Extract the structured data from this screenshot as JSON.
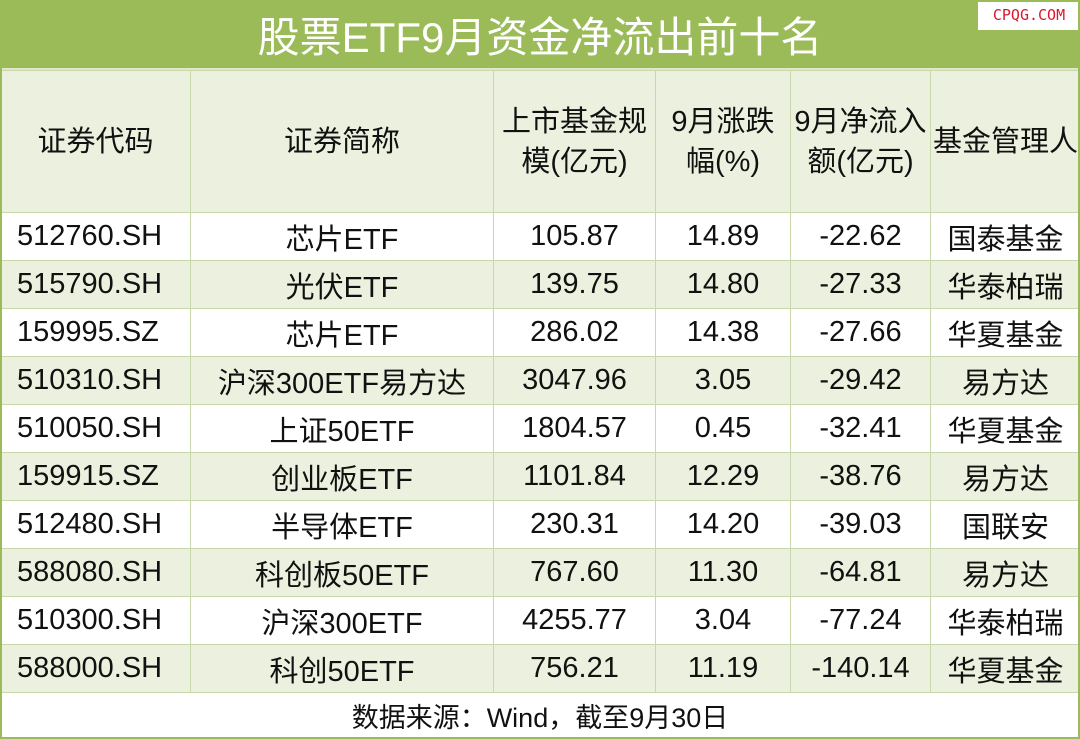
{
  "title": "股票ETF9月资金净流出前十名",
  "watermark": "CPQG.COM",
  "chart_data": {
    "type": "table",
    "title": "股票ETF9月资金净流出前十名",
    "columns": [
      "证券代码",
      "证券简称",
      "上市基金规模(亿元)",
      "9月涨跌幅(%)",
      "9月净流入额(亿元)",
      "基金管理人"
    ],
    "rows": [
      [
        "512760.SH",
        "芯片ETF",
        "105.87",
        "14.89",
        "-22.62",
        "国泰基金"
      ],
      [
        "515790.SH",
        "光伏ETF",
        "139.75",
        "14.80",
        "-27.33",
        "华泰柏瑞"
      ],
      [
        "159995.SZ",
        "芯片ETF",
        "286.02",
        "14.38",
        "-27.66",
        "华夏基金"
      ],
      [
        "510310.SH",
        "沪深300ETF易方达",
        "3047.96",
        "3.05",
        "-29.42",
        "易方达"
      ],
      [
        "510050.SH",
        "上证50ETF",
        "1804.57",
        "0.45",
        "-32.41",
        "华夏基金"
      ],
      [
        "159915.SZ",
        "创业板ETF",
        "1101.84",
        "12.29",
        "-38.76",
        "易方达"
      ],
      [
        "512480.SH",
        "半导体ETF",
        "230.31",
        "14.20",
        "-39.03",
        "国联安"
      ],
      [
        "588080.SH",
        "科创板50ETF",
        "767.60",
        "11.30",
        "-64.81",
        "易方达"
      ],
      [
        "510300.SH",
        "沪深300ETF",
        "4255.77",
        "3.04",
        "-77.24",
        "华泰柏瑞"
      ],
      [
        "588000.SH",
        "科创50ETF",
        "756.21",
        "11.19",
        "-140.14",
        "华夏基金"
      ]
    ],
    "source": "数据来源：Wind，截至9月30日",
    "colors": {
      "header": "#9bbb59",
      "band": "#ebf1de",
      "title_text": "#ffffff",
      "watermark": "#d9182d"
    }
  }
}
